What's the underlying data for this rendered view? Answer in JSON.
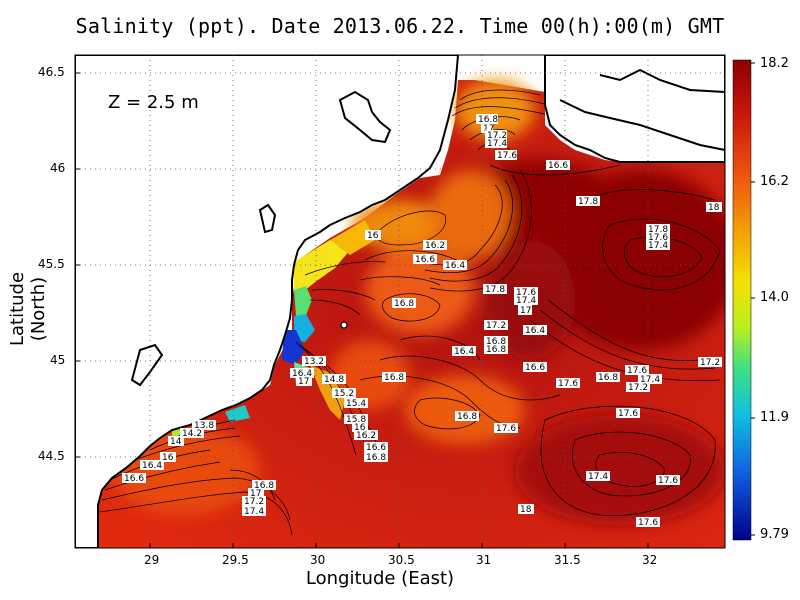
{
  "title": "Salinity (ppt). Date 2013.06.22. Time 00(h):00(m) GMT",
  "map": {
    "depth_label": "Z = 2.5 m",
    "xlabel": "Longitude (East)",
    "ylabel": "Latitude (North)",
    "x_ticks": [
      "29",
      "29.5",
      "30",
      "30.5",
      "31",
      "31.5",
      "32"
    ],
    "y_ticks": [
      "46.5",
      "46",
      "45.5",
      "45",
      "44.5"
    ],
    "colors": {
      "land": "#ffffff",
      "coastline": "#000000",
      "high_salinity": "#8b0000",
      "low_salinity": "#00008b"
    }
  },
  "colorbar": {
    "ticks": [
      "18.2",
      "16.2",
      "14.0",
      "11.9",
      "9.79"
    ],
    "min": 9.79,
    "max": 18.2
  },
  "contour_labels": [
    "16.8",
    "17",
    "17.2",
    "17.4",
    "17.6",
    "16.6",
    "17.8",
    "18",
    "17.8",
    "17.6",
    "17.4",
    "16",
    "16.2",
    "16.6",
    "16.4",
    "17.8",
    "17.6",
    "17.4",
    "17",
    "16.8",
    "17.2",
    "16.4",
    "16.8",
    "16.8",
    "16.4",
    "16.6",
    "17.6",
    "16.8",
    "17.6",
    "17.4",
    "17.2",
    "17.2",
    "13.2",
    "16.4",
    "17",
    "14.8",
    "15.2",
    "15.4",
    "15.8",
    "16",
    "16.2",
    "16.6",
    "16.8",
    "16.8",
    "16.8",
    "17.6",
    "17.6",
    "13.8",
    "14.2",
    "14",
    "16",
    "16.4",
    "16.6",
    "16.8",
    "17",
    "17.2",
    "17.4",
    "17.4",
    "18",
    "17.6",
    "17.6"
  ]
}
